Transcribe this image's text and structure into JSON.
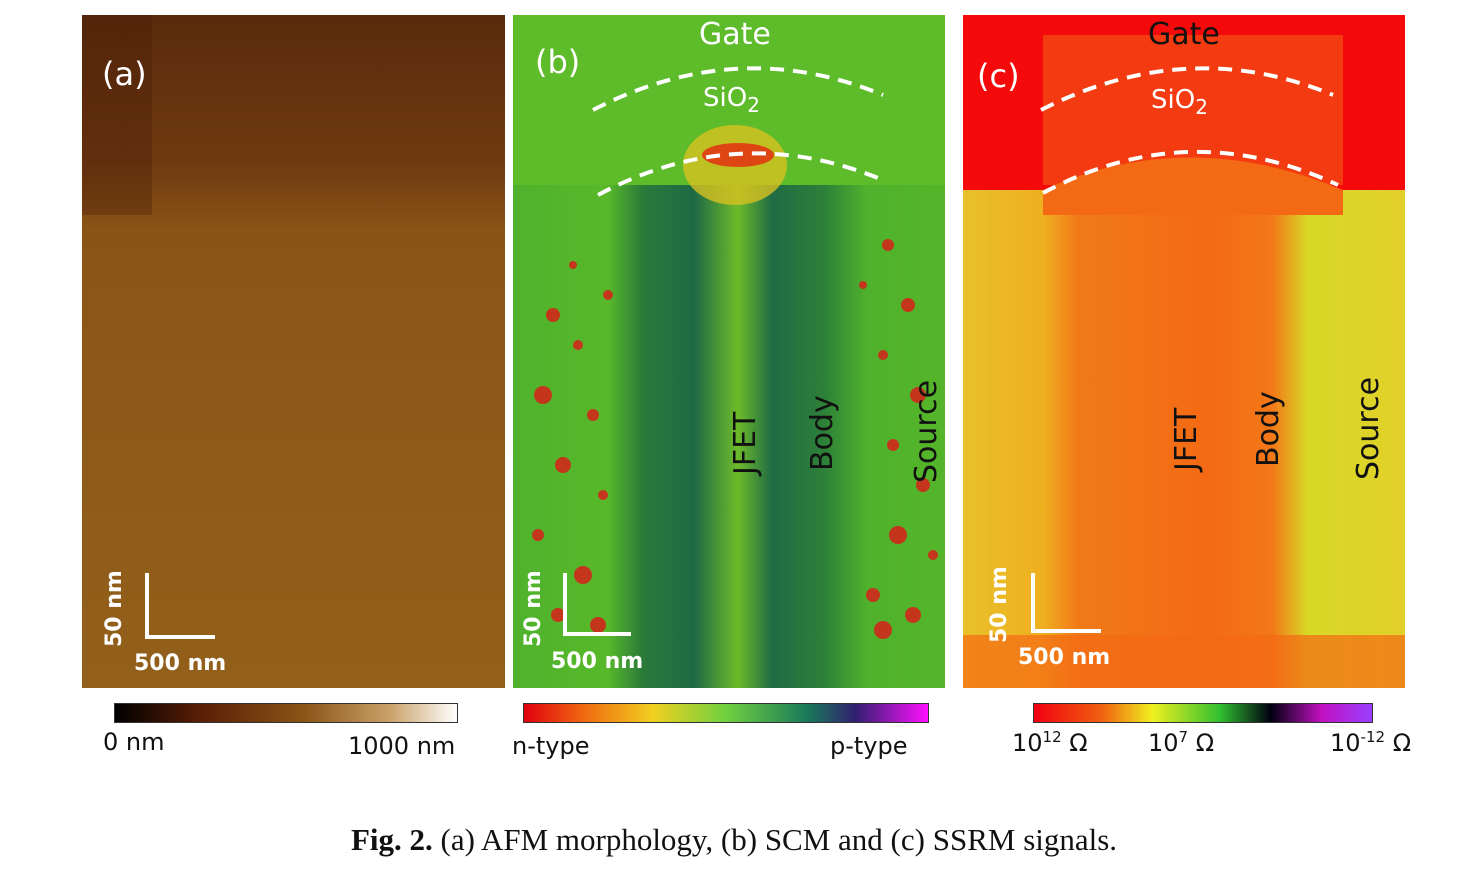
{
  "panels": {
    "a": {
      "label": "(a)",
      "scale_x": "500 nm",
      "scale_y": "50 nm"
    },
    "b": {
      "label": "(b)",
      "gate": "Gate",
      "oxide": "SiO",
      "oxide_sub": "2",
      "jfet": "JFET",
      "body": "Body",
      "source": "Source",
      "scale_x": "500 nm",
      "scale_y": "50 nm"
    },
    "c": {
      "label": "(c)",
      "gate": "Gate",
      "oxide": "SiO",
      "oxide_sub": "2",
      "jfet": "JFET",
      "body": "Body",
      "source": "Source",
      "scale_x": "500 nm",
      "scale_y": "50 nm"
    }
  },
  "colorbars": {
    "a": {
      "min": "0 nm",
      "max": "1000 nm"
    },
    "b": {
      "min": "n-type",
      "max": "p-type"
    },
    "c": {
      "t1_base": "10",
      "t1_exp": "12",
      "t2_base": "10",
      "t2_exp": "7",
      "t3_base": "10",
      "t3_exp": "-12",
      "unit": "Ω"
    }
  },
  "caption": {
    "bold": "Fig. 2.",
    "text": " (a) AFM morphology, (b) SCM and (c) SSRM signals."
  }
}
